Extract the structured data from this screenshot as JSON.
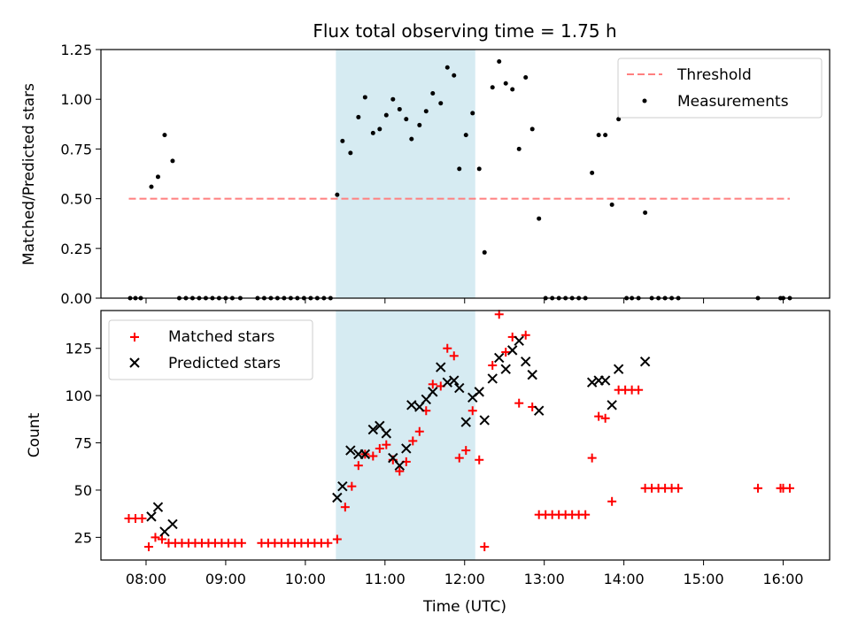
{
  "title": "Flux total observing time = 1.75 h",
  "colors": {
    "threshold": "#ff7f7f",
    "measurement": "#000000",
    "matched": "#ff0000",
    "predicted": "#000000",
    "highlight": "#add8e6"
  },
  "chart_data": [
    {
      "type": "scatter",
      "ylabel": "Matched/Predicted stars",
      "ylim": [
        0,
        1.25
      ],
      "yticks": [
        0,
        0.25,
        0.5,
        0.75,
        1.0,
        1.25
      ],
      "ytick_labels": [
        "0.00",
        "0.25",
        "0.50",
        "0.75",
        "1.00",
        "1.25"
      ],
      "xlim": [
        "07:26",
        "16:35"
      ],
      "highlight_span": [
        "10:23",
        "12:08"
      ],
      "legend_position": "top-right",
      "legend": [
        "Threshold",
        "Measurements"
      ],
      "threshold": {
        "name": "Threshold",
        "y": 0.5,
        "x": [
          "07:47",
          "16:05"
        ],
        "style": "dashed"
      },
      "measurements": {
        "name": "Measurements",
        "points": [
          [
            "07:48",
            0
          ],
          [
            "07:52",
            0
          ],
          [
            "07:56",
            0
          ],
          [
            "08:04",
            0.56
          ],
          [
            "08:09",
            0.61
          ],
          [
            "08:14",
            0.82
          ],
          [
            "08:20",
            0.69
          ],
          [
            "08:25",
            0
          ],
          [
            "08:30",
            0
          ],
          [
            "08:35",
            0
          ],
          [
            "08:40",
            0
          ],
          [
            "08:45",
            0
          ],
          [
            "08:50",
            0
          ],
          [
            "08:55",
            0
          ],
          [
            "09:00",
            0
          ],
          [
            "09:05",
            0
          ],
          [
            "09:11",
            0
          ],
          [
            "09:24",
            0
          ],
          [
            "09:29",
            0
          ],
          [
            "09:34",
            0
          ],
          [
            "09:39",
            0
          ],
          [
            "09:44",
            0
          ],
          [
            "09:49",
            0
          ],
          [
            "09:54",
            0
          ],
          [
            "09:59",
            0
          ],
          [
            "10:04",
            0
          ],
          [
            "10:09",
            0
          ],
          [
            "10:14",
            0
          ],
          [
            "10:19",
            0
          ],
          [
            "10:24",
            0.52
          ],
          [
            "10:28",
            0.79
          ],
          [
            "10:34",
            0.73
          ],
          [
            "10:40",
            0.91
          ],
          [
            "10:45",
            1.01
          ],
          [
            "10:51",
            0.83
          ],
          [
            "10:56",
            0.85
          ],
          [
            "11:01",
            0.92
          ],
          [
            "11:06",
            1.0
          ],
          [
            "11:11",
            0.95
          ],
          [
            "11:16",
            0.9
          ],
          [
            "11:20",
            0.8
          ],
          [
            "11:26",
            0.87
          ],
          [
            "11:31",
            0.94
          ],
          [
            "11:36",
            1.03
          ],
          [
            "11:42",
            0.98
          ],
          [
            "11:47",
            1.16
          ],
          [
            "11:52",
            1.12
          ],
          [
            "11:56",
            0.65
          ],
          [
            "12:01",
            0.82
          ],
          [
            "12:06",
            0.93
          ],
          [
            "12:11",
            0.65
          ],
          [
            "12:15",
            0.23
          ],
          [
            "12:21",
            1.06
          ],
          [
            "12:26",
            1.19
          ],
          [
            "12:31",
            1.08
          ],
          [
            "12:36",
            1.05
          ],
          [
            "12:41",
            0.75
          ],
          [
            "12:46",
            1.11
          ],
          [
            "12:51",
            0.85
          ],
          [
            "12:56",
            0.4
          ],
          [
            "13:01",
            0
          ],
          [
            "13:06",
            0
          ],
          [
            "13:11",
            0
          ],
          [
            "13:16",
            0
          ],
          [
            "13:21",
            0
          ],
          [
            "13:26",
            0
          ],
          [
            "13:31",
            0
          ],
          [
            "13:36",
            0.63
          ],
          [
            "13:41",
            0.82
          ],
          [
            "13:46",
            0.82
          ],
          [
            "13:51",
            0.47
          ],
          [
            "13:56",
            0.9
          ],
          [
            "14:02",
            0
          ],
          [
            "14:06",
            0
          ],
          [
            "14:11",
            0
          ],
          [
            "14:16",
            0.43
          ],
          [
            "14:21",
            0
          ],
          [
            "14:26",
            0
          ],
          [
            "14:31",
            0
          ],
          [
            "14:36",
            0
          ],
          [
            "14:41",
            0
          ],
          [
            "15:41",
            0
          ],
          [
            "15:58",
            0
          ],
          [
            "16:00",
            0
          ],
          [
            "16:05",
            0
          ]
        ]
      }
    },
    {
      "type": "scatter",
      "ylabel": "Count",
      "xlabel": "Time (UTC)",
      "ylim": [
        13,
        145
      ],
      "yticks": [
        25,
        50,
        75,
        100,
        125
      ],
      "xlim": [
        "07:26",
        "16:35"
      ],
      "xticks": [
        "08:00",
        "09:00",
        "10:00",
        "11:00",
        "12:00",
        "13:00",
        "14:00",
        "15:00",
        "16:00"
      ],
      "highlight_span": [
        "10:23",
        "12:08"
      ],
      "legend_position": "top-left",
      "legend": [
        "Matched stars",
        "Predicted stars"
      ],
      "series": [
        {
          "name": "Matched stars",
          "marker": "plus",
          "points": [
            [
              "07:47",
              35
            ],
            [
              "07:52",
              35
            ],
            [
              "07:57",
              35
            ],
            [
              "08:02",
              20
            ],
            [
              "08:07",
              25
            ],
            [
              "08:12",
              24
            ],
            [
              "08:17",
              22
            ],
            [
              "08:22",
              22
            ],
            [
              "08:27",
              22
            ],
            [
              "08:32",
              22
            ],
            [
              "08:37",
              22
            ],
            [
              "08:42",
              22
            ],
            [
              "08:47",
              22
            ],
            [
              "08:52",
              22
            ],
            [
              "08:57",
              22
            ],
            [
              "09:02",
              22
            ],
            [
              "09:07",
              22
            ],
            [
              "09:12",
              22
            ],
            [
              "09:27",
              22
            ],
            [
              "09:32",
              22
            ],
            [
              "09:37",
              22
            ],
            [
              "09:42",
              22
            ],
            [
              "09:47",
              22
            ],
            [
              "09:52",
              22
            ],
            [
              "09:57",
              22
            ],
            [
              "10:02",
              22
            ],
            [
              "10:07",
              22
            ],
            [
              "10:12",
              22
            ],
            [
              "10:17",
              22
            ],
            [
              "10:24",
              24
            ],
            [
              "10:30",
              41
            ],
            [
              "10:35",
              52
            ],
            [
              "10:40",
              63
            ],
            [
              "10:45",
              69
            ],
            [
              "10:51",
              68
            ],
            [
              "10:56",
              72
            ],
            [
              "11:01",
              74
            ],
            [
              "11:06",
              66
            ],
            [
              "11:11",
              60
            ],
            [
              "11:16",
              65
            ],
            [
              "11:21",
              76
            ],
            [
              "11:26",
              81
            ],
            [
              "11:31",
              92
            ],
            [
              "11:36",
              106
            ],
            [
              "11:42",
              105
            ],
            [
              "11:47",
              125
            ],
            [
              "11:52",
              121
            ],
            [
              "11:56",
              67
            ],
            [
              "12:01",
              71
            ],
            [
              "12:06",
              92
            ],
            [
              "12:11",
              66
            ],
            [
              "12:15",
              20
            ],
            [
              "12:21",
              116
            ],
            [
              "12:26",
              143
            ],
            [
              "12:31",
              123
            ],
            [
              "12:36",
              131
            ],
            [
              "12:41",
              96
            ],
            [
              "12:46",
              132
            ],
            [
              "12:51",
              94
            ],
            [
              "12:56",
              37
            ],
            [
              "13:01",
              37
            ],
            [
              "13:06",
              37
            ],
            [
              "13:11",
              37
            ],
            [
              "13:16",
              37
            ],
            [
              "13:21",
              37
            ],
            [
              "13:26",
              37
            ],
            [
              "13:31",
              37
            ],
            [
              "13:36",
              67
            ],
            [
              "13:41",
              89
            ],
            [
              "13:46",
              88
            ],
            [
              "13:51",
              44
            ],
            [
              "13:56",
              103
            ],
            [
              "14:01",
              103
            ],
            [
              "14:06",
              103
            ],
            [
              "14:11",
              103
            ],
            [
              "14:16",
              51
            ],
            [
              "14:21",
              51
            ],
            [
              "14:26",
              51
            ],
            [
              "14:31",
              51
            ],
            [
              "14:36",
              51
            ],
            [
              "14:41",
              51
            ],
            [
              "15:41",
              51
            ],
            [
              "15:58",
              51
            ],
            [
              "16:00",
              51
            ],
            [
              "16:05",
              51
            ]
          ]
        },
        {
          "name": "Predicted stars",
          "marker": "x",
          "points": [
            [
              "08:04",
              36
            ],
            [
              "08:09",
              41
            ],
            [
              "08:14",
              28
            ],
            [
              "08:20",
              32
            ],
            [
              "10:24",
              46
            ],
            [
              "10:28",
              52
            ],
            [
              "10:34",
              71
            ],
            [
              "10:40",
              69
            ],
            [
              "10:45",
              69
            ],
            [
              "10:51",
              82
            ],
            [
              "10:56",
              84
            ],
            [
              "11:01",
              80
            ],
            [
              "11:06",
              67
            ],
            [
              "11:11",
              63
            ],
            [
              "11:16",
              72
            ],
            [
              "11:20",
              95
            ],
            [
              "11:26",
              94
            ],
            [
              "11:31",
              98
            ],
            [
              "11:36",
              102
            ],
            [
              "11:42",
              115
            ],
            [
              "11:47",
              107
            ],
            [
              "11:52",
              108
            ],
            [
              "11:56",
              104
            ],
            [
              "12:01",
              86
            ],
            [
              "12:06",
              99
            ],
            [
              "12:11",
              102
            ],
            [
              "12:15",
              87
            ],
            [
              "12:21",
              109
            ],
            [
              "12:26",
              120
            ],
            [
              "12:31",
              114
            ],
            [
              "12:36",
              124
            ],
            [
              "12:41",
              129
            ],
            [
              "12:46",
              118
            ],
            [
              "12:51",
              111
            ],
            [
              "12:56",
              92
            ],
            [
              "13:36",
              107
            ],
            [
              "13:41",
              108
            ],
            [
              "13:46",
              108
            ],
            [
              "13:51",
              95
            ],
            [
              "13:56",
              114
            ],
            [
              "14:16",
              118
            ]
          ]
        }
      ]
    }
  ]
}
